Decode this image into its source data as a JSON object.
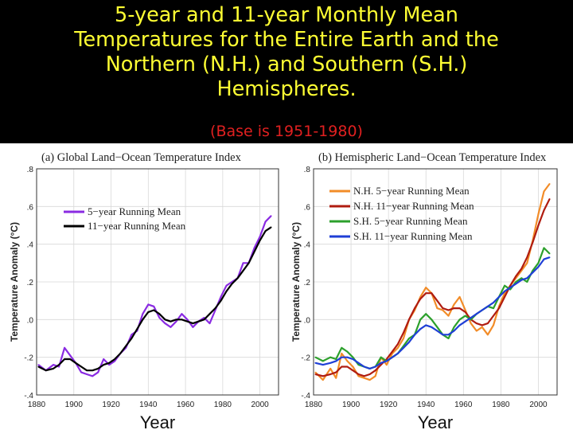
{
  "header": {
    "title": "5-year and 11-year Monthly Mean Temperatures for the Entire Earth and the Northern (N.H.) and Southern (S.H.) Hemispheres.",
    "subtitle": "(Base is 1951-1980)"
  },
  "colors": {
    "title": "#ffff33",
    "subtitle": "#e02020",
    "background_band": "#000000"
  },
  "chart_data": [
    {
      "type": "line",
      "title": "(a) Global Land−Ocean Temperature Index",
      "xlabel": "Year",
      "ylabel": "Temperature Anomaly (°C)",
      "xlim": [
        1880,
        2010
      ],
      "ylim": [
        -0.4,
        0.8
      ],
      "xticks": [
        1880,
        1900,
        1920,
        1940,
        1960,
        1980,
        2000
      ],
      "xtick_labels": [
        "1880",
        "1900",
        "1920",
        "1940",
        "1960",
        "1980",
        "2000"
      ],
      "yticks": [
        -0.4,
        -0.2,
        0.0,
        0.2,
        0.4,
        0.6,
        0.8
      ],
      "ytick_labels": [
        "-.4",
        "-.2",
        ".0",
        ".2",
        ".4",
        ".6",
        ".8"
      ],
      "legend": "upper-left",
      "grid": true,
      "x": [
        1881,
        1885,
        1889,
        1892,
        1895,
        1898,
        1901,
        1904,
        1907,
        1910,
        1913,
        1916,
        1919,
        1922,
        1925,
        1928,
        1931,
        1934,
        1937,
        1940,
        1943,
        1946,
        1949,
        1952,
        1955,
        1958,
        1961,
        1964,
        1967,
        1970,
        1973,
        1976,
        1979,
        1982,
        1985,
        1988,
        1991,
        1994,
        1997,
        2000,
        2003,
        2006
      ],
      "series": [
        {
          "name": "5−year Running Mean",
          "color": "#8a2be2",
          "values": [
            -0.24,
            -0.27,
            -0.24,
            -0.25,
            -0.15,
            -0.19,
            -0.23,
            -0.28,
            -0.29,
            -0.3,
            -0.28,
            -0.21,
            -0.24,
            -0.22,
            -0.18,
            -0.15,
            -0.08,
            -0.06,
            0.03,
            0.08,
            0.07,
            0.01,
            -0.02,
            -0.04,
            -0.01,
            0.03,
            0.0,
            -0.04,
            -0.01,
            0.01,
            -0.02,
            0.05,
            0.12,
            0.18,
            0.2,
            0.22,
            0.3,
            0.3,
            0.38,
            0.44,
            0.52,
            0.55
          ]
        },
        {
          "name": "11−year Running Mean",
          "color": "#000000",
          "values": [
            -0.25,
            -0.27,
            -0.26,
            -0.24,
            -0.21,
            -0.21,
            -0.23,
            -0.25,
            -0.27,
            -0.27,
            -0.26,
            -0.24,
            -0.23,
            -0.21,
            -0.18,
            -0.14,
            -0.1,
            -0.05,
            0.0,
            0.04,
            0.05,
            0.03,
            0.0,
            -0.01,
            0.0,
            0.0,
            -0.01,
            -0.02,
            -0.01,
            0.0,
            0.03,
            0.06,
            0.1,
            0.15,
            0.19,
            0.22,
            0.26,
            0.3,
            0.36,
            0.42,
            0.47,
            0.49
          ]
        }
      ]
    },
    {
      "type": "line",
      "title": "(b) Hemispheric Land−Ocean Temperature Index",
      "xlabel": "Year",
      "ylabel": "Temperature Anomaly (°C)",
      "xlim": [
        1880,
        2010
      ],
      "ylim": [
        -0.4,
        0.8
      ],
      "xticks": [
        1880,
        1900,
        1920,
        1940,
        1960,
        1980,
        2000
      ],
      "xtick_labels": [
        "1880",
        "1900",
        "1920",
        "1940",
        "1960",
        "1980",
        "2000"
      ],
      "yticks": [
        -0.4,
        -0.2,
        0.0,
        0.2,
        0.4,
        0.6,
        0.8
      ],
      "ytick_labels": [
        "-.4",
        "-.2",
        ".0",
        ".2",
        ".4",
        ".6",
        ".8"
      ],
      "legend": "upper-left",
      "grid": true,
      "x": [
        1881,
        1885,
        1889,
        1892,
        1895,
        1898,
        1901,
        1904,
        1907,
        1910,
        1913,
        1916,
        1919,
        1922,
        1925,
        1928,
        1931,
        1934,
        1937,
        1940,
        1943,
        1946,
        1949,
        1952,
        1955,
        1958,
        1961,
        1964,
        1967,
        1970,
        1973,
        1976,
        1979,
        1982,
        1985,
        1988,
        1991,
        1994,
        1997,
        2000,
        2003,
        2006
      ],
      "series": [
        {
          "name": "N.H. 5−year Running Mean",
          "color": "#f28c28",
          "values": [
            -0.28,
            -0.32,
            -0.26,
            -0.31,
            -0.18,
            -0.22,
            -0.25,
            -0.3,
            -0.31,
            -0.32,
            -0.3,
            -0.2,
            -0.24,
            -0.18,
            -0.15,
            -0.1,
            0.0,
            0.05,
            0.12,
            0.17,
            0.14,
            0.06,
            0.05,
            0.02,
            0.08,
            0.12,
            0.05,
            -0.02,
            -0.06,
            -0.04,
            -0.08,
            -0.03,
            0.07,
            0.14,
            0.18,
            0.22,
            0.26,
            0.3,
            0.42,
            0.56,
            0.68,
            0.72
          ]
        },
        {
          "name": "N.H. 11−year Running Mean",
          "color": "#b01c10",
          "values": [
            -0.29,
            -0.3,
            -0.29,
            -0.28,
            -0.25,
            -0.25,
            -0.27,
            -0.29,
            -0.3,
            -0.29,
            -0.27,
            -0.24,
            -0.21,
            -0.17,
            -0.13,
            -0.07,
            0.0,
            0.06,
            0.11,
            0.14,
            0.14,
            0.1,
            0.06,
            0.05,
            0.06,
            0.06,
            0.04,
            0.0,
            -0.02,
            -0.03,
            -0.02,
            0.02,
            0.06,
            0.12,
            0.18,
            0.23,
            0.27,
            0.33,
            0.41,
            0.5,
            0.58,
            0.64
          ]
        },
        {
          "name": "S.H. 5−year Running Mean",
          "color": "#2ca02c",
          "values": [
            -0.2,
            -0.22,
            -0.2,
            -0.21,
            -0.15,
            -0.17,
            -0.2,
            -0.24,
            -0.25,
            -0.26,
            -0.25,
            -0.2,
            -0.22,
            -0.2,
            -0.18,
            -0.14,
            -0.1,
            -0.08,
            0.0,
            0.03,
            0.0,
            -0.04,
            -0.08,
            -0.1,
            -0.04,
            0.0,
            0.02,
            0.0,
            0.03,
            0.05,
            0.07,
            0.06,
            0.12,
            0.18,
            0.16,
            0.2,
            0.22,
            0.2,
            0.26,
            0.3,
            0.38,
            0.35
          ]
        },
        {
          "name": "S.H. 11−year Running Mean",
          "color": "#1f3fd6",
          "values": [
            -0.23,
            -0.24,
            -0.23,
            -0.22,
            -0.2,
            -0.2,
            -0.21,
            -0.23,
            -0.25,
            -0.26,
            -0.25,
            -0.23,
            -0.22,
            -0.2,
            -0.18,
            -0.15,
            -0.12,
            -0.08,
            -0.05,
            -0.03,
            -0.04,
            -0.06,
            -0.08,
            -0.08,
            -0.06,
            -0.03,
            -0.01,
            0.01,
            0.03,
            0.05,
            0.07,
            0.09,
            0.12,
            0.15,
            0.17,
            0.19,
            0.21,
            0.22,
            0.25,
            0.28,
            0.32,
            0.33
          ]
        }
      ]
    }
  ]
}
